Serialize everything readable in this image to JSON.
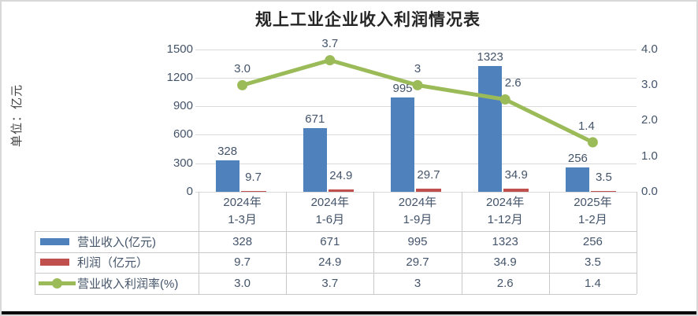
{
  "chart_data": {
    "type": "bar+line-combo",
    "title": "规上工业企业收入利润情况表",
    "categories": [
      [
        "2024年",
        "1-3月"
      ],
      [
        "2024年",
        "1-6月"
      ],
      [
        "2024年",
        "1-9月"
      ],
      [
        "2024年",
        "1-12月"
      ],
      [
        "2025年",
        "1-2月"
      ]
    ],
    "series": [
      {
        "name": "营业收入(亿元)",
        "type": "bar",
        "axis": "left",
        "color": "#4F81BD",
        "values": [
          328,
          671,
          995,
          1323,
          256
        ],
        "labels": [
          "328",
          "671",
          "995",
          "1323",
          "256"
        ]
      },
      {
        "name": "利润（亿元）",
        "type": "bar",
        "axis": "left",
        "color": "#C0504D",
        "values": [
          9.7,
          24.9,
          29.7,
          34.9,
          3.5
        ],
        "labels": [
          "9.7",
          "24.9",
          "29.7",
          "34.9",
          "3.5"
        ]
      },
      {
        "name": "营业收入利润率(%)",
        "type": "line",
        "axis": "right",
        "color": "#9BBB59",
        "values": [
          3.0,
          3.7,
          3,
          2.6,
          1.4
        ],
        "labels": [
          "3.0",
          "3.7",
          "3",
          "2.6",
          "1.4"
        ]
      }
    ],
    "left_axis": {
      "title": "单位：亿元",
      "min": 0,
      "max": 1500,
      "ticks": [
        "1500",
        "1200",
        "900",
        "600",
        "300",
        "0"
      ]
    },
    "right_axis": {
      "min": 0,
      "max": 4,
      "ticks": [
        "4.0",
        "3.0",
        "2.0",
        "1.0",
        "0.0"
      ]
    },
    "grid": true,
    "legend_position": "attached-data-table-left",
    "data_table": true
  },
  "colors": {
    "grid": "#d9d9d9",
    "table_border": "#c9c9c9",
    "text": "#44546a",
    "title": "#262626",
    "frame": "#d8d8d8",
    "bottom_rule": "#000000",
    "background": "#ffffff"
  }
}
